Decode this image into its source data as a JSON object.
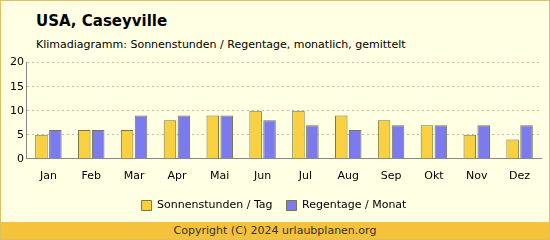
{
  "chart_data": {
    "type": "bar",
    "title": "USA, Caseyville",
    "subtitle": "Klimadiagramm: Sonnenstunden / Regentage, monatlich, gemittelt",
    "categories": [
      "Jan",
      "Feb",
      "Mar",
      "Apr",
      "Mai",
      "Jun",
      "Jul",
      "Aug",
      "Sep",
      "Okt",
      "Nov",
      "Dez"
    ],
    "series": [
      {
        "name": "Sonnenstunden / Tag",
        "color": "#f8d040",
        "values": [
          5,
          6,
          6,
          8,
          9,
          10,
          10,
          9,
          8,
          7,
          5,
          4
        ]
      },
      {
        "name": "Regentage / Monat",
        "color": "#7b7bef",
        "values": [
          6,
          6,
          9,
          9,
          9,
          8,
          7,
          6,
          7,
          7,
          7,
          7
        ]
      }
    ],
    "ylim": [
      0,
      20
    ],
    "yticks": [
      0,
      5,
      10,
      15,
      20
    ],
    "grid": true,
    "legend": "bottom"
  },
  "footer": "Copyright (C) 2024 urlaubplanen.org"
}
